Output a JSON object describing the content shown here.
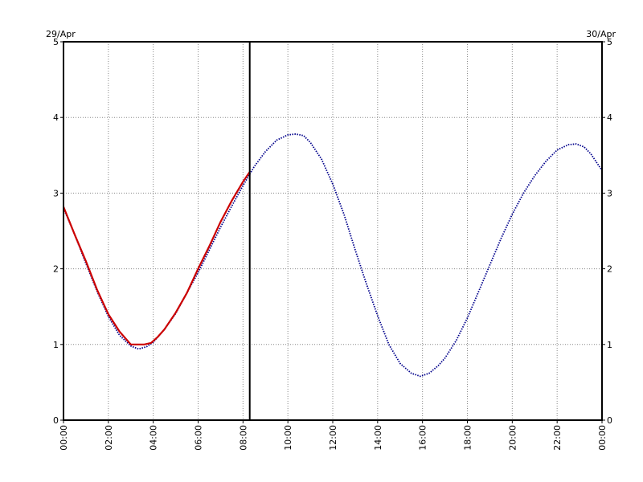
{
  "chart_data": {
    "type": "line",
    "date_left": "29/Apr",
    "date_right": "30/Apr",
    "x_tick_labels": [
      "00:00",
      "02:00",
      "04:00",
      "06:00",
      "08:00",
      "10:00",
      "12:00",
      "14:00",
      "16:00",
      "18:00",
      "20:00",
      "22:00",
      "00:00"
    ],
    "y_tick_labels": [
      "0",
      "1",
      "2",
      "3",
      "4",
      "5"
    ],
    "xlim_hours": [
      0,
      24
    ],
    "ylim": [
      0,
      5
    ],
    "grid": true,
    "current_time_hours": 8.3,
    "series": [
      {
        "color": "#cc0000",
        "style": "solid",
        "x": [
          0.0,
          0.5,
          1.0,
          1.5,
          2.0,
          2.5,
          3.0,
          3.3,
          3.6,
          3.9,
          4.2,
          4.5,
          5.0,
          5.5,
          6.0,
          6.5,
          7.0,
          7.5,
          8.0,
          8.3
        ],
        "y": [
          2.82,
          2.45,
          2.1,
          1.72,
          1.4,
          1.17,
          1.0,
          1.0,
          1.0,
          1.02,
          1.1,
          1.2,
          1.42,
          1.68,
          2.0,
          2.3,
          2.62,
          2.9,
          3.15,
          3.28
        ]
      },
      {
        "color": "#00008b",
        "style": "dotted",
        "x": [
          0.0,
          0.5,
          1.0,
          1.5,
          2.0,
          2.5,
          3.0,
          3.35,
          3.7,
          4.0,
          4.5,
          5.0,
          5.5,
          6.0,
          6.5,
          7.0,
          7.5,
          8.0,
          8.5,
          9.0,
          9.5,
          10.0,
          10.35,
          10.7,
          11.0,
          11.5,
          12.0,
          12.5,
          13.0,
          13.5,
          14.0,
          14.5,
          15.0,
          15.5,
          15.9,
          16.3,
          16.7,
          17.0,
          17.5,
          18.0,
          18.5,
          19.0,
          19.5,
          20.0,
          20.5,
          21.0,
          21.5,
          22.0,
          22.5,
          22.85,
          23.2,
          23.5,
          24.0
        ],
        "y": [
          2.8,
          2.45,
          2.07,
          1.7,
          1.37,
          1.12,
          0.98,
          0.94,
          0.97,
          1.03,
          1.2,
          1.41,
          1.68,
          1.95,
          2.25,
          2.55,
          2.83,
          3.1,
          3.35,
          3.55,
          3.7,
          3.77,
          3.78,
          3.76,
          3.67,
          3.45,
          3.12,
          2.72,
          2.25,
          1.8,
          1.38,
          1.0,
          0.75,
          0.62,
          0.58,
          0.62,
          0.72,
          0.82,
          1.05,
          1.35,
          1.7,
          2.05,
          2.4,
          2.72,
          3.0,
          3.23,
          3.42,
          3.57,
          3.64,
          3.65,
          3.61,
          3.52,
          3.3
        ]
      }
    ]
  }
}
